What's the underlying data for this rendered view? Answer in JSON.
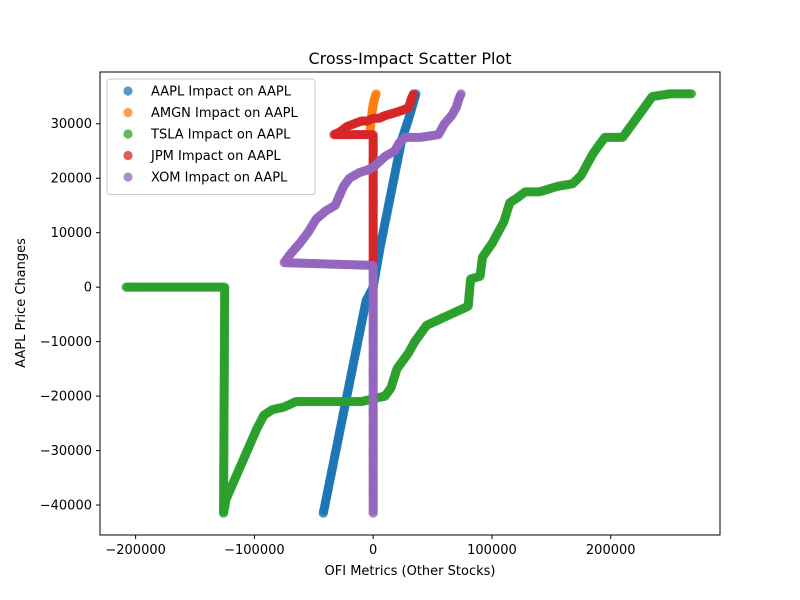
{
  "chart_data": {
    "type": "scatter",
    "title": "Cross-Impact Scatter Plot",
    "xlabel": "OFI Metrics (Other Stocks)",
    "ylabel": "AAPL Price Changes",
    "xlim": [
      -230000,
      292000
    ],
    "ylim": [
      -45500,
      39500
    ],
    "xticks": [
      -200000,
      -100000,
      0,
      100000,
      200000
    ],
    "xtick_labels": [
      "−200000",
      "−100000",
      "0",
      "100000",
      "200000"
    ],
    "yticks": [
      -40000,
      -30000,
      -20000,
      -10000,
      0,
      10000,
      20000,
      30000
    ],
    "ytick_labels": [
      "−40000",
      "−30000",
      "−20000",
      "−10000",
      "0",
      "10000",
      "20000",
      "30000"
    ],
    "grid": false,
    "legend_position": "top-left",
    "series": [
      {
        "name": "AAPL Impact on AAPL",
        "color": "#1f77b4",
        "points": [
          [
            -42000,
            -41500
          ],
          [
            -36000,
            -35000
          ],
          [
            -30000,
            -28500
          ],
          [
            -24000,
            -22000
          ],
          [
            -18000,
            -15500
          ],
          [
            -12000,
            -9000
          ],
          [
            -6000,
            -2500
          ],
          [
            0,
            0
          ],
          [
            6000,
            7500
          ],
          [
            12000,
            14000
          ],
          [
            18000,
            20500
          ],
          [
            24000,
            27000
          ],
          [
            30000,
            31000
          ],
          [
            36000,
            35500
          ]
        ]
      },
      {
        "name": "AMGN Impact on AAPL",
        "color": "#ff7f0e",
        "points": [
          [
            -3000,
            28000
          ],
          [
            -2000,
            30000
          ],
          [
            -1000,
            32000
          ],
          [
            0,
            33500
          ],
          [
            1000,
            34500
          ],
          [
            2500,
            35500
          ]
        ]
      },
      {
        "name": "TSLA Impact on AAPL",
        "color": "#2ca02c",
        "points": [
          [
            -208000,
            0
          ],
          [
            -190000,
            0
          ],
          [
            -170000,
            0
          ],
          [
            -150000,
            0
          ],
          [
            -125000,
            0
          ],
          [
            -126000,
            -41500
          ],
          [
            -124000,
            -39000
          ],
          [
            -120000,
            -37000
          ],
          [
            -116000,
            -35000
          ],
          [
            -110000,
            -32000
          ],
          [
            -104000,
            -29000
          ],
          [
            -98000,
            -26000
          ],
          [
            -92000,
            -23500
          ],
          [
            -85000,
            -22500
          ],
          [
            -75000,
            -22000
          ],
          [
            -65000,
            -21000
          ],
          [
            -50000,
            -21000
          ],
          [
            -30000,
            -21000
          ],
          [
            -10000,
            -21000
          ],
          [
            0,
            -20500
          ],
          [
            10000,
            -20000
          ],
          [
            15000,
            -18500
          ],
          [
            20000,
            -15000
          ],
          [
            25000,
            -13500
          ],
          [
            30000,
            -12000
          ],
          [
            35000,
            -10000
          ],
          [
            40000,
            -8500
          ],
          [
            45000,
            -7000
          ],
          [
            55000,
            -6000
          ],
          [
            65000,
            -5000
          ],
          [
            75000,
            -4000
          ],
          [
            80000,
            -3500
          ],
          [
            82000,
            1500
          ],
          [
            90000,
            2000
          ],
          [
            92000,
            5500
          ],
          [
            100000,
            8000
          ],
          [
            105000,
            10000
          ],
          [
            110000,
            12000
          ],
          [
            115000,
            15500
          ],
          [
            122000,
            16500
          ],
          [
            128000,
            17500
          ],
          [
            140000,
            17500
          ],
          [
            155000,
            18500
          ],
          [
            168000,
            19000
          ],
          [
            175000,
            20500
          ],
          [
            180000,
            22500
          ],
          [
            185000,
            24500
          ],
          [
            190000,
            26000
          ],
          [
            195000,
            27500
          ],
          [
            210000,
            27500
          ],
          [
            215000,
            29000
          ],
          [
            220000,
            30500
          ],
          [
            225000,
            32000
          ],
          [
            230000,
            33500
          ],
          [
            235000,
            35000
          ],
          [
            250000,
            35500
          ],
          [
            268000,
            35500
          ]
        ]
      },
      {
        "name": "JPM Impact on AAPL",
        "color": "#d62728",
        "points": [
          [
            0,
            4000
          ],
          [
            0,
            10000
          ],
          [
            0,
            16000
          ],
          [
            0,
            22000
          ],
          [
            0,
            28000
          ],
          [
            -33000,
            28000
          ],
          [
            -28000,
            28500
          ],
          [
            -22000,
            29500
          ],
          [
            -16000,
            30000
          ],
          [
            -10000,
            30500
          ],
          [
            -5000,
            30500
          ],
          [
            0,
            31000
          ],
          [
            5000,
            31000
          ],
          [
            10000,
            31500
          ],
          [
            18000,
            32000
          ],
          [
            25000,
            32500
          ],
          [
            30000,
            33000
          ],
          [
            32000,
            34500
          ],
          [
            34000,
            35500
          ]
        ]
      },
      {
        "name": "XOM Impact on AAPL",
        "color": "#9467bd",
        "points": [
          [
            0,
            -41500
          ],
          [
            0,
            -30000
          ],
          [
            0,
            -20000
          ],
          [
            0,
            -10000
          ],
          [
            0,
            0
          ],
          [
            0,
            4000
          ],
          [
            -75000,
            4500
          ],
          [
            -70000,
            6000
          ],
          [
            -62000,
            8000
          ],
          [
            -55000,
            10000
          ],
          [
            -48000,
            12500
          ],
          [
            -40000,
            14000
          ],
          [
            -32000,
            15000
          ],
          [
            -28000,
            17000
          ],
          [
            -25000,
            18500
          ],
          [
            -20000,
            20000
          ],
          [
            -12000,
            21000
          ],
          [
            -5000,
            21500
          ],
          [
            0,
            22000
          ],
          [
            5000,
            23000
          ],
          [
            10000,
            24000
          ],
          [
            18000,
            25000
          ],
          [
            22000,
            26500
          ],
          [
            27000,
            27500
          ],
          [
            40000,
            27500
          ],
          [
            55000,
            28000
          ],
          [
            60000,
            30000
          ],
          [
            66000,
            31500
          ],
          [
            70000,
            33000
          ],
          [
            72000,
            34500
          ],
          [
            74000,
            35500
          ]
        ]
      }
    ]
  }
}
